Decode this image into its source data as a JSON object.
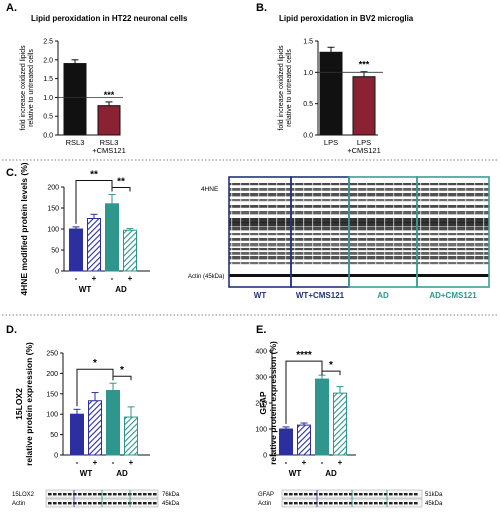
{
  "panels": {
    "A": {
      "letter": "A.",
      "title": "Lipid peroxidation in HT22 neuronal cells"
    },
    "B": {
      "letter": "B.",
      "title": "Lipid peroxidation in BV2 microglia"
    },
    "C": {
      "letter": "C."
    },
    "D": {
      "letter": "D."
    },
    "E": {
      "letter": "E."
    }
  },
  "blots": {
    "C": {
      "marker": "4HNE",
      "loading": "Actin (45kDa)",
      "groups": [
        "WT",
        "WT+CMS121",
        "AD",
        "AD+CMS121"
      ]
    },
    "D": {
      "row1": "15LOX2",
      "row2": "Actin",
      "kda1": "76kDa",
      "kda2": "45kDa"
    },
    "E": {
      "row1": "GFAP",
      "row2": "Actin",
      "kda1": "51kDa",
      "kda2": "45kDa"
    }
  },
  "colors": {
    "wt": "#2b2fa0",
    "ad": "#2e968c",
    "black": "#111111",
    "maroon": "#8b2233",
    "wt_box": "#22337a",
    "ad_box": "#3a9e93"
  },
  "chart_data": [
    {
      "id": "A",
      "type": "bar",
      "ylabel": [
        "fold increase oxidized lipids",
        "relative to untreated cells"
      ],
      "ylim": [
        0,
        2.5
      ],
      "yticks": [
        "0.0",
        "0.5",
        "1.0",
        "1.5",
        "2.0",
        "2.5"
      ],
      "categories": [
        [
          "RSL3"
        ],
        [
          "RSL3",
          "+CMS121"
        ]
      ],
      "values": [
        1.9,
        0.78
      ],
      "errors": [
        0.1,
        0.1
      ],
      "reference_line": 1.0,
      "annotations": [
        {
          "label": "***",
          "bar": 1
        }
      ]
    },
    {
      "id": "B",
      "type": "bar",
      "ylabel": [
        "fold increase oxidized lipids",
        "relative to untreated cells"
      ],
      "ylim": [
        0,
        1.5
      ],
      "yticks": [
        "0.0",
        "0.5",
        "1.0",
        "1.5"
      ],
      "categories": [
        [
          "LPS"
        ],
        [
          "LPS",
          "+CMS121"
        ]
      ],
      "values": [
        1.32,
        0.93
      ],
      "errors": [
        0.08,
        0.08
      ],
      "reference_line": 1.0,
      "annotations": [
        {
          "label": "***",
          "bar": 1
        }
      ]
    },
    {
      "id": "C",
      "type": "bar",
      "ylabel": [
        "4HNE modified protein levels (%)"
      ],
      "ylim": [
        0,
        200
      ],
      "yticks": [
        "0",
        "50",
        "100",
        "150",
        "200"
      ],
      "x_sub": [
        "-",
        "+",
        "-",
        "+"
      ],
      "groups": [
        "WT",
        "AD"
      ],
      "values": [
        100,
        125,
        160,
        97
      ],
      "errors": [
        5,
        10,
        22,
        4
      ],
      "brackets": [
        {
          "from": 0,
          "to": 2,
          "label": "**"
        },
        {
          "from": 2,
          "to": 3,
          "label": "**"
        }
      ]
    },
    {
      "id": "D",
      "type": "bar",
      "ylabel": [
        "15LOX2",
        "relative protein expression (%)"
      ],
      "ylim": [
        0,
        250
      ],
      "yticks": [
        "0",
        "50",
        "100",
        "150",
        "200",
        "250"
      ],
      "x_sub": [
        "-",
        "+",
        "-",
        "+"
      ],
      "groups": [
        "WT",
        "AD"
      ],
      "values": [
        100,
        133,
        158,
        93
      ],
      "errors": [
        12,
        20,
        18,
        25
      ],
      "brackets": [
        {
          "from": 0,
          "to": 2,
          "label": "*"
        },
        {
          "from": 2,
          "to": 3,
          "label": "*"
        }
      ]
    },
    {
      "id": "E",
      "type": "bar",
      "ylabel": [
        "GFAP",
        "relative protein expression (%)"
      ],
      "ylim": [
        0,
        400
      ],
      "yticks": [
        "0",
        "100",
        "200",
        "300",
        "400"
      ],
      "x_sub": [
        "-",
        "+",
        "-",
        "+"
      ],
      "groups": [
        "WT",
        "AD"
      ],
      "values": [
        100,
        115,
        292,
        238
      ],
      "errors": [
        8,
        8,
        15,
        25
      ],
      "brackets": [
        {
          "from": 0,
          "to": 2,
          "label": "****"
        },
        {
          "from": 2,
          "to": 3,
          "label": "*"
        }
      ]
    }
  ]
}
